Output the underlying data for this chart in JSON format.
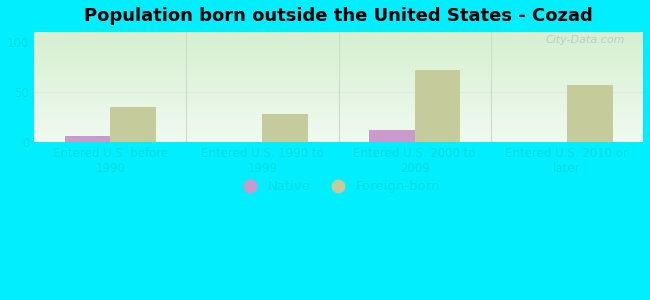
{
  "title": "Population born outside the United States - Cozad",
  "categories": [
    "Entered U.S. before\n1990",
    "Entered U.S. 1990 to\n1999",
    "Entered U.S. 2000 to\n2009",
    "Entered U.S. 2010 or\nlater"
  ],
  "native_values": [
    6,
    0,
    12,
    0
  ],
  "foreign_values": [
    35,
    28,
    72,
    57
  ],
  "native_color": "#cc99cc",
  "foreign_color": "#c5cb9a",
  "background_color": "#00eeff",
  "gradient_top": "#d6f0d0",
  "gradient_bottom": "#f0faf0",
  "ylim": [
    0,
    110
  ],
  "yticks": [
    0,
    50,
    100
  ],
  "bar_width": 0.3,
  "title_fontsize": 13,
  "tick_fontsize": 8.5,
  "legend_fontsize": 9.5,
  "tick_color": "#00dddd",
  "watermark_text": "City-Data.com",
  "grid_color": "#e0e8e0",
  "divider_color": "#ccddcc"
}
